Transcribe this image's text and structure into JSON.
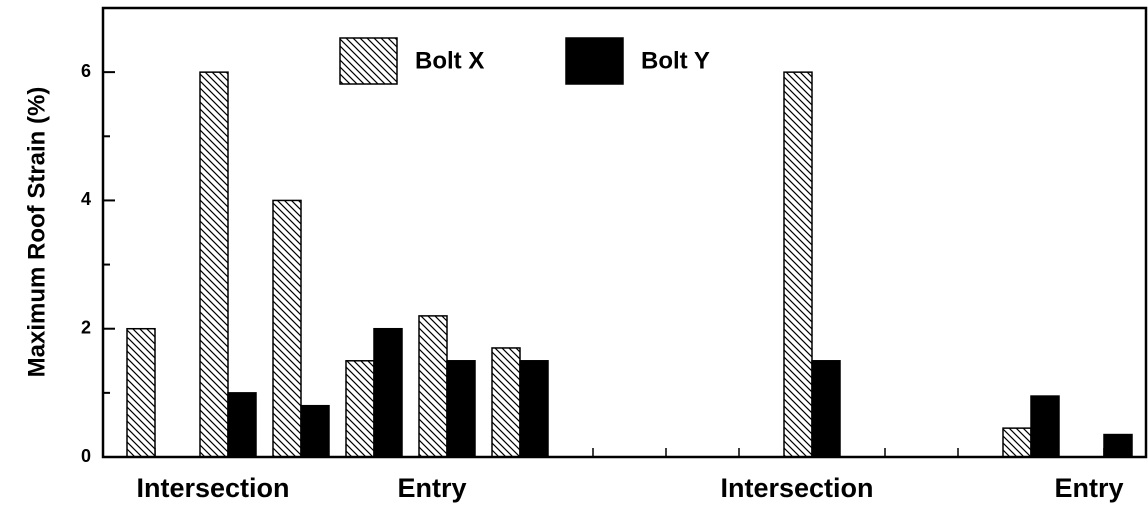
{
  "chart_data": {
    "type": "bar",
    "ylabel": "Maximum Roof Strain (%)",
    "categories": [
      null,
      "Intersection",
      null,
      null,
      "Entry",
      null,
      null,
      null,
      null,
      "Intersection",
      null,
      null,
      null,
      "Entry"
    ],
    "series": [
      {
        "name": "Bolt X",
        "color": "#000000",
        "pattern": "hatch",
        "values": [
          2.0,
          6.0,
          4.0,
          1.5,
          2.2,
          1.7,
          null,
          null,
          null,
          6.0,
          null,
          null,
          0.45,
          null
        ]
      },
      {
        "name": "Bolt Y",
        "color": "#000000",
        "pattern": "solid",
        "values": [
          null,
          1.0,
          0.8,
          2.0,
          1.5,
          1.5,
          null,
          null,
          null,
          1.5,
          null,
          null,
          0.95,
          0.35
        ]
      }
    ],
    "ylim": [
      0,
      7
    ],
    "yticks": [
      0,
      2,
      4,
      6
    ],
    "yminorticks": [
      1,
      3,
      5
    ],
    "legend": "upper center"
  }
}
